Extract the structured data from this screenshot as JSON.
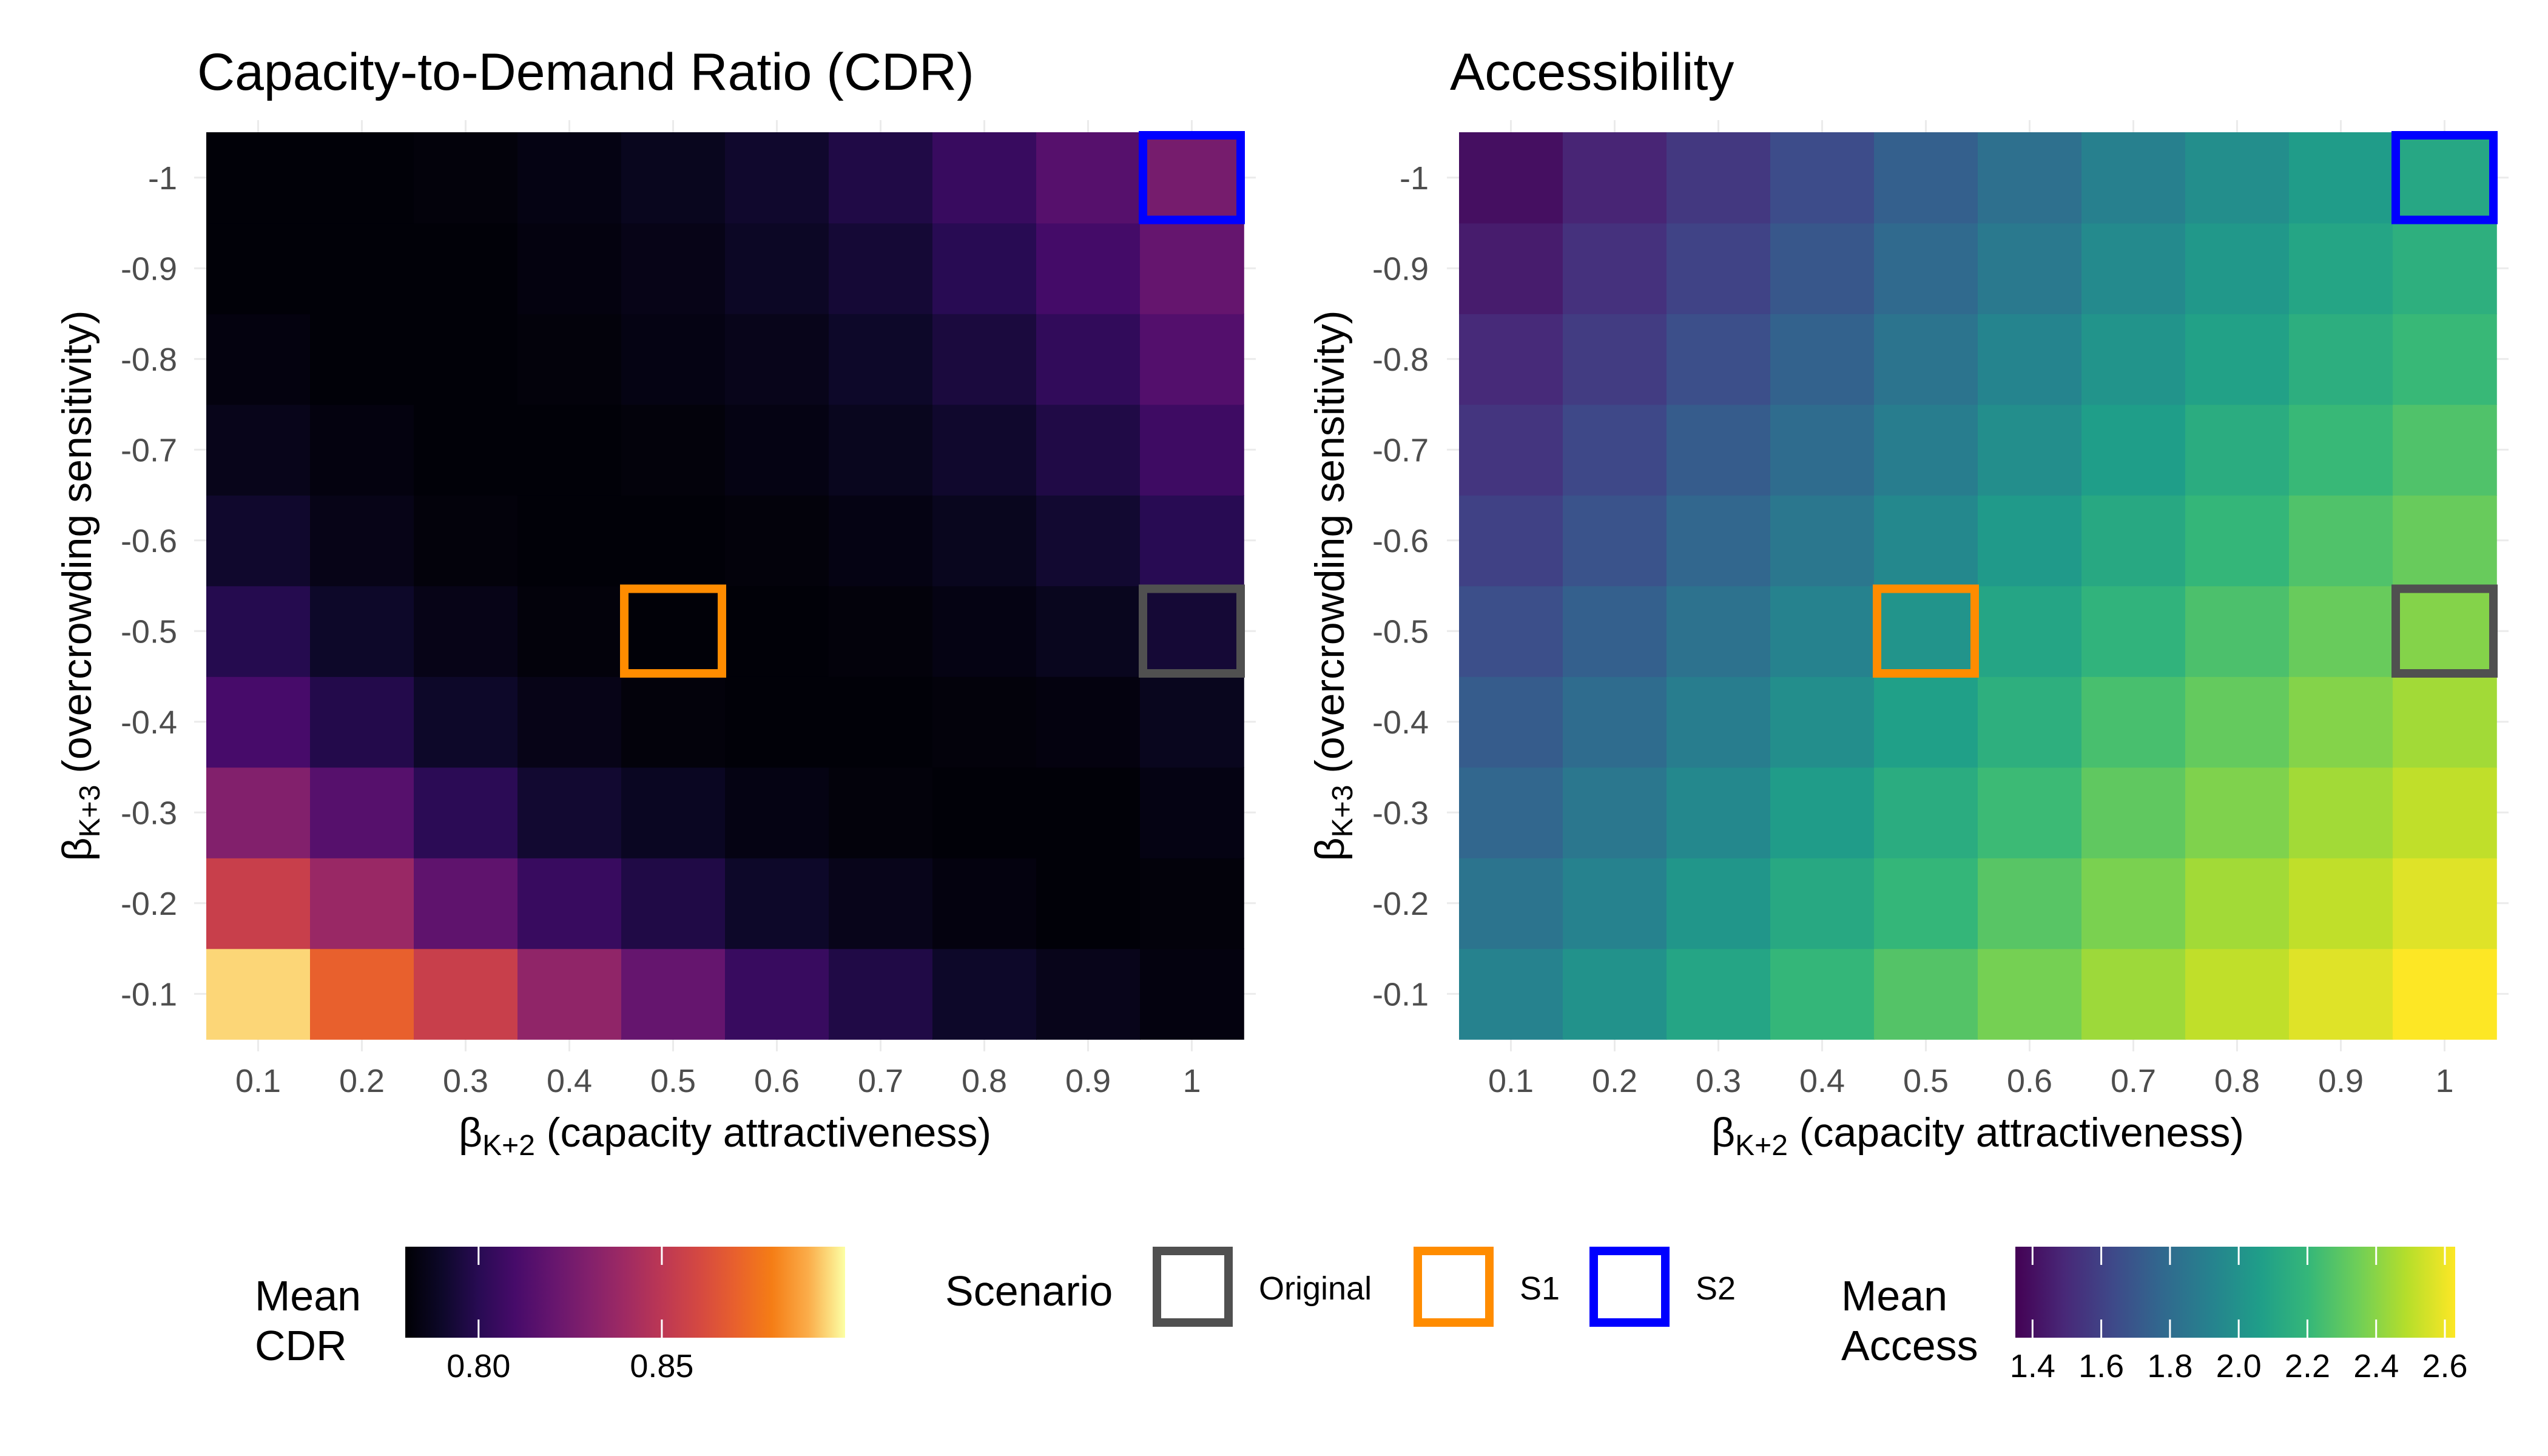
{
  "chart_data": [
    {
      "type": "heatmap",
      "title": "Capacity-to-Demand Ratio (CDR)",
      "xlabel": "(capacity attractiveness)",
      "xlabel_symbol": {
        "base": "β",
        "sub": "K+2"
      },
      "ylabel": "(overcrowding sensitivity)",
      "ylabel_symbol": {
        "base": "β",
        "sub": "K+3"
      },
      "x": [
        "0.1",
        "0.2",
        "0.3",
        "0.4",
        "0.5",
        "0.6",
        "0.7",
        "0.8",
        "0.9",
        "1"
      ],
      "y": [
        "-0.1",
        "-0.2",
        "-0.3",
        "-0.4",
        "-0.5",
        "-0.6",
        "-0.7",
        "-0.8",
        "-0.9",
        "-1"
      ],
      "colorscale": "magma",
      "zlim": [
        0.78,
        0.9
      ],
      "z": [
        [
          0.895,
          0.87,
          0.855,
          0.835,
          0.82,
          0.805,
          0.797,
          0.79,
          0.786,
          0.783
        ],
        [
          0.855,
          0.838,
          0.818,
          0.805,
          0.797,
          0.79,
          0.786,
          0.783,
          0.781,
          0.782
        ],
        [
          0.83,
          0.815,
          0.801,
          0.792,
          0.788,
          0.784,
          0.782,
          0.781,
          0.781,
          0.784
        ],
        [
          0.81,
          0.798,
          0.79,
          0.785,
          0.782,
          0.781,
          0.781,
          0.782,
          0.783,
          0.787
        ],
        [
          0.799,
          0.79,
          0.785,
          0.782,
          0.781,
          0.781,
          0.782,
          0.784,
          0.787,
          0.793
        ],
        [
          0.791,
          0.785,
          0.782,
          0.781,
          0.781,
          0.782,
          0.784,
          0.787,
          0.792,
          0.8
        ],
        [
          0.786,
          0.783,
          0.781,
          0.781,
          0.782,
          0.784,
          0.787,
          0.791,
          0.797,
          0.807
        ],
        [
          0.783,
          0.781,
          0.781,
          0.782,
          0.784,
          0.786,
          0.79,
          0.795,
          0.803,
          0.814
        ],
        [
          0.781,
          0.781,
          0.781,
          0.783,
          0.785,
          0.789,
          0.793,
          0.8,
          0.809,
          0.82
        ],
        [
          0.781,
          0.781,
          0.782,
          0.784,
          0.787,
          0.791,
          0.797,
          0.805,
          0.815,
          0.826
        ]
      ]
    },
    {
      "type": "heatmap",
      "title": "Accessibility",
      "xlabel": "(capacity attractiveness)",
      "xlabel_symbol": {
        "base": "β",
        "sub": "K+2"
      },
      "ylabel": "(overcrowding sensitivity)",
      "ylabel_symbol": {
        "base": "β",
        "sub": "K+3"
      },
      "x": [
        "0.1",
        "0.2",
        "0.3",
        "0.4",
        "0.5",
        "0.6",
        "0.7",
        "0.8",
        "0.9",
        "1"
      ],
      "y": [
        "-0.1",
        "-0.2",
        "-0.3",
        "-0.4",
        "-0.5",
        "-0.6",
        "-0.7",
        "-0.8",
        "-0.9",
        "-1"
      ],
      "colorscale": "viridis",
      "zlim": [
        1.35,
        2.63
      ],
      "z": [
        [
          1.92,
          2.0,
          2.1,
          2.2,
          2.28,
          2.36,
          2.44,
          2.51,
          2.57,
          2.63
        ],
        [
          1.84,
          1.92,
          2.02,
          2.12,
          2.2,
          2.29,
          2.37,
          2.45,
          2.51,
          2.57
        ],
        [
          1.77,
          1.86,
          1.95,
          2.05,
          2.14,
          2.22,
          2.31,
          2.38,
          2.45,
          2.51
        ],
        [
          1.72,
          1.8,
          1.89,
          1.98,
          2.07,
          2.16,
          2.25,
          2.32,
          2.39,
          2.45
        ],
        [
          1.66,
          1.74,
          1.83,
          1.92,
          2.01,
          2.1,
          2.18,
          2.26,
          2.33,
          2.39
        ],
        [
          1.6,
          1.68,
          1.77,
          1.86,
          1.95,
          2.04,
          2.12,
          2.2,
          2.27,
          2.33
        ],
        [
          1.55,
          1.63,
          1.72,
          1.8,
          1.89,
          1.98,
          2.06,
          2.14,
          2.21,
          2.27
        ],
        [
          1.5,
          1.58,
          1.66,
          1.75,
          1.84,
          1.93,
          2.01,
          2.08,
          2.15,
          2.21
        ],
        [
          1.45,
          1.53,
          1.61,
          1.7,
          1.79,
          1.87,
          1.96,
          2.03,
          2.1,
          2.16
        ],
        [
          1.4,
          1.48,
          1.56,
          1.65,
          1.74,
          1.82,
          1.91,
          1.98,
          2.05,
          2.11
        ]
      ]
    }
  ],
  "scenarios": [
    {
      "label": "Original",
      "color": "#505050",
      "x": "1",
      "y": "-0.5"
    },
    {
      "label": "S1",
      "color": "#ff8c00",
      "x": "0.5",
      "y": "-0.5"
    },
    {
      "label": "S2",
      "color": "#0000ff",
      "x": "1",
      "y": "-1"
    }
  ],
  "legend": {
    "cdr_title": [
      "Mean",
      "CDR"
    ],
    "cdr_ticks": [
      0.8,
      0.85
    ],
    "cdr_tick_labels": [
      "0.80",
      "0.85"
    ],
    "scenario_title": "Scenario",
    "access_title": [
      "Mean",
      "Access"
    ],
    "access_ticks": [
      1.4,
      1.6,
      1.8,
      2.0,
      2.2,
      2.4,
      2.6
    ],
    "access_tick_labels": [
      "1.4",
      "1.6",
      "1.8",
      "2.0",
      "2.2",
      "2.4",
      "2.6"
    ]
  }
}
